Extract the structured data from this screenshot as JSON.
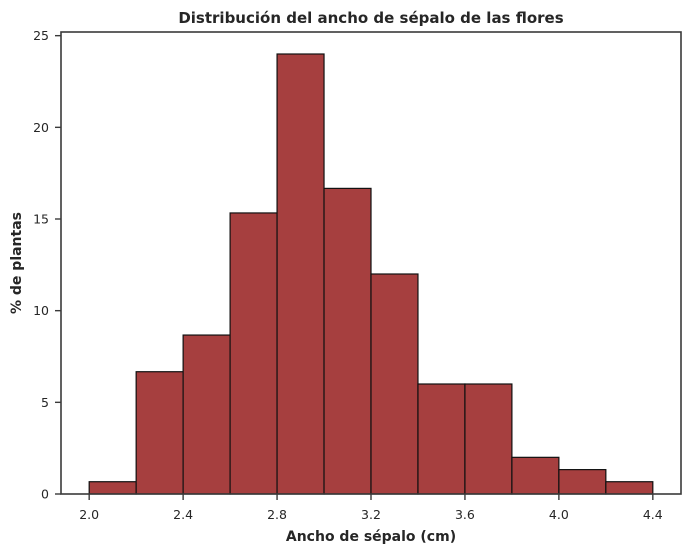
{
  "chart_data": {
    "type": "bar",
    "subtype": "histogram",
    "title": "Distribución del ancho de sépalo de las flores",
    "xlabel": "Ancho de sépalo (cm)",
    "ylabel": "% de plantas",
    "bin_edges": [
      2.0,
      2.2,
      2.4,
      2.6,
      2.8,
      3.0,
      3.2,
      3.4,
      3.6,
      3.8,
      4.0,
      4.2,
      4.4
    ],
    "categories": [
      "2.0-2.2",
      "2.2-2.4",
      "2.4-2.6",
      "2.6-2.8",
      "2.8-3.0",
      "3.0-3.2",
      "3.2-3.4",
      "3.4-3.6",
      "3.6-3.8",
      "3.8-4.0",
      "4.0-4.2",
      "4.2-4.4"
    ],
    "values": [
      0.67,
      6.67,
      8.67,
      15.33,
      24.0,
      16.67,
      12.0,
      6.0,
      6.0,
      2.0,
      1.33,
      0.67
    ],
    "xlim": [
      1.88,
      4.52
    ],
    "ylim": [
      0,
      25.2
    ],
    "xticks": [
      "2.0",
      "2.4",
      "2.8",
      "3.2",
      "3.6",
      "4.0",
      "4.4"
    ],
    "xtick_values": [
      2.0,
      2.4,
      2.8,
      3.2,
      3.6,
      4.0,
      4.4
    ],
    "yticks": [
      "0",
      "5",
      "10",
      "15",
      "20",
      "25"
    ],
    "ytick_values": [
      0,
      5,
      10,
      15,
      20,
      25
    ],
    "grid": false,
    "legend": null,
    "bar_color": "#a63f3f",
    "edge_color": "#111111"
  }
}
